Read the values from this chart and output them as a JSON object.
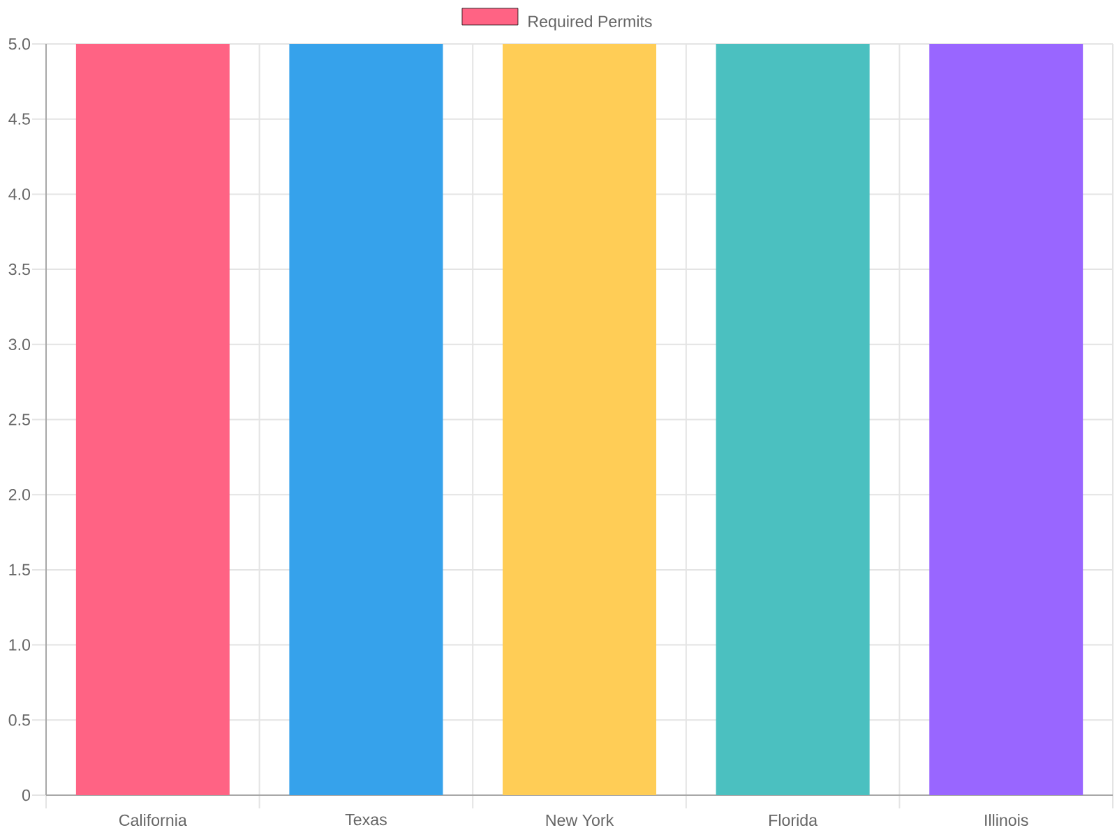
{
  "chart_data": {
    "type": "bar",
    "categories": [
      "California",
      "Texas",
      "New York",
      "Florida",
      "Illinois"
    ],
    "series": [
      {
        "name": "Required Permits",
        "colors": [
          "#ff6384",
          "#36a2eb",
          "#ffcd56",
          "#4bc0c0",
          "#9966ff"
        ],
        "values": [
          5,
          5,
          5,
          5,
          5
        ]
      }
    ],
    "ylim": [
      0,
      5
    ],
    "yticks": [
      0,
      0.5,
      {
        "value": 1,
        "label": "1.0"
      },
      1.5,
      {
        "value": 2,
        "label": "2.0"
      },
      2.5,
      {
        "value": 3,
        "label": "3.0"
      },
      3.5,
      {
        "value": 4,
        "label": "4.0"
      },
      4.5,
      {
        "value": 5,
        "label": "5.0"
      }
    ],
    "grid": true,
    "legend": "top"
  }
}
